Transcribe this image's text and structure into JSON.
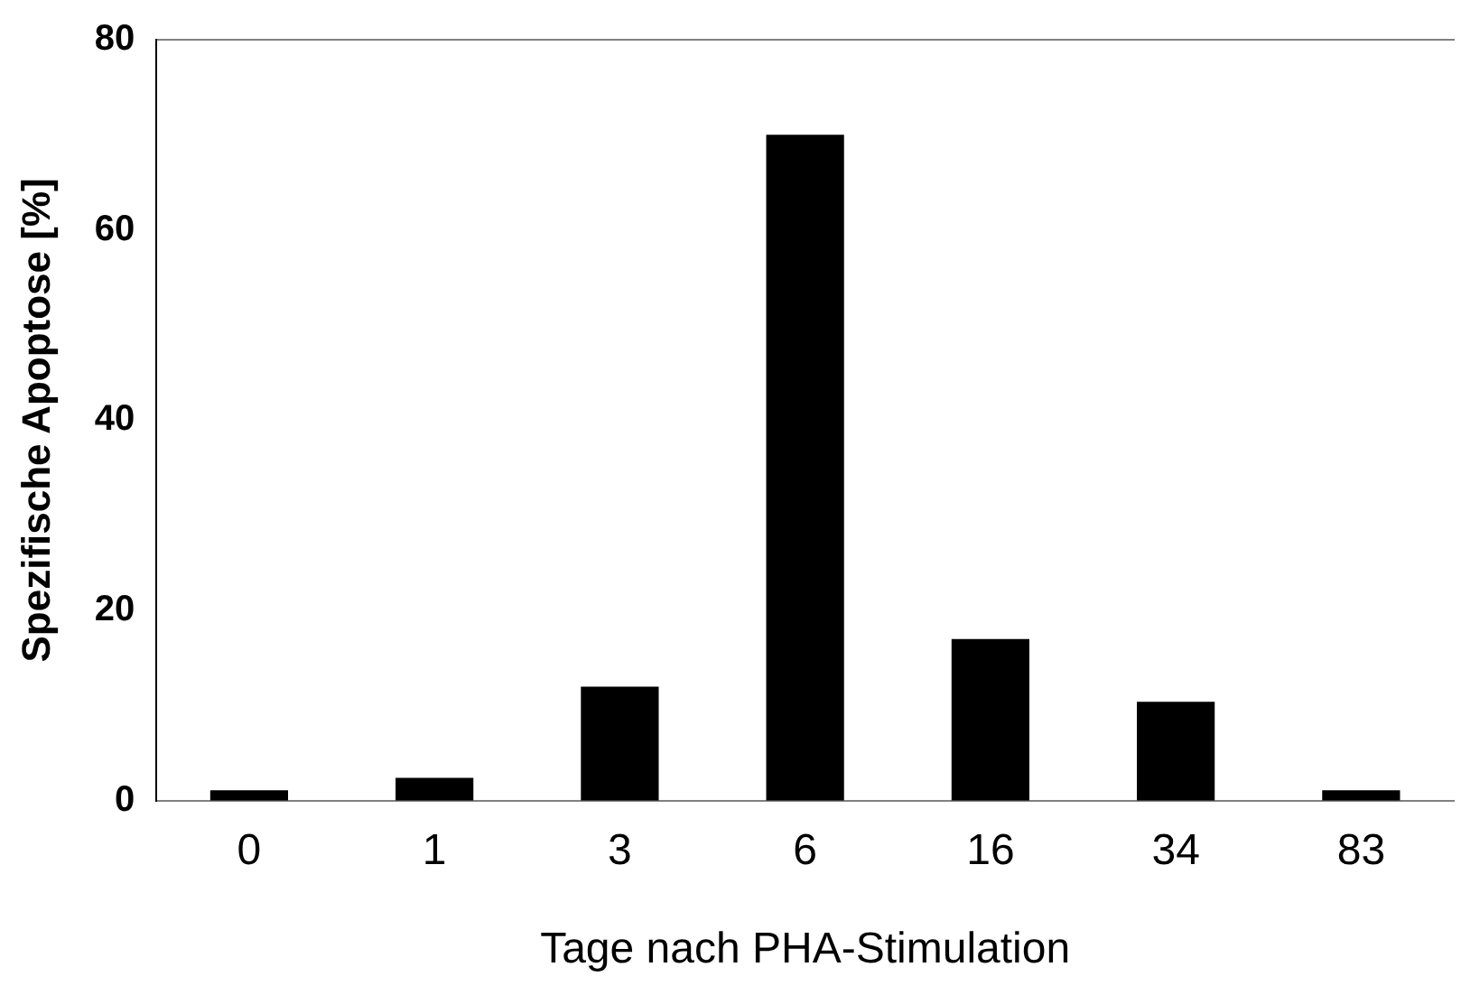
{
  "chart_data": {
    "type": "bar",
    "xlabel": "Tage nach PHA-Stimulation",
    "ylabel": "Spezifische Apoptose [%]",
    "categories": [
      "0",
      "1",
      "3",
      "6",
      "16",
      "34",
      "83"
    ],
    "values": [
      1.1,
      2.4,
      12,
      70,
      17,
      10.4,
      1.1
    ],
    "color": "#000000",
    "ylim": [
      0,
      80
    ],
    "yticks": [
      0,
      20,
      40,
      60,
      80
    ],
    "grid": false,
    "legend": false
  }
}
